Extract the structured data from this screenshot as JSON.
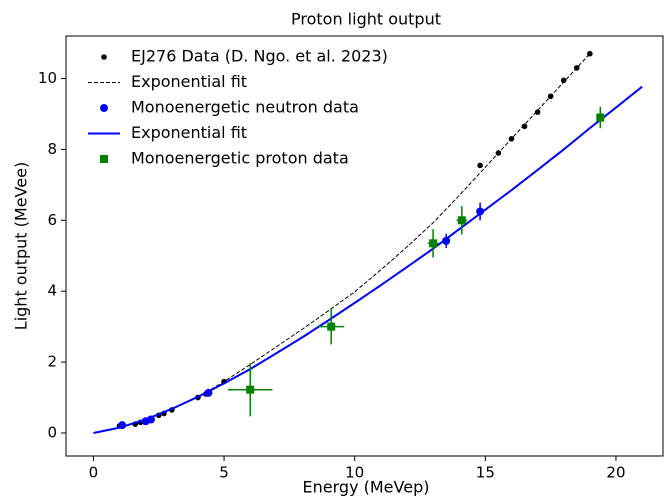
{
  "chart_data": {
    "type": "scatter",
    "title": "Proton light output",
    "xlabel": "Energy (MeVep)",
    "ylabel": "Light output (MeVee)",
    "xlim": [
      -1.05,
      21.8
    ],
    "ylim": [
      -0.65,
      11.2
    ],
    "xticks": [
      0,
      5,
      10,
      15,
      20
    ],
    "yticks": [
      0,
      2,
      4,
      6,
      8,
      10
    ],
    "grid": false,
    "legend": "upper left",
    "series": [
      {
        "name": "EJ276 Data (D. Ngo. et al. 2023)",
        "kind": "points",
        "marker": "circle",
        "color": "#000000",
        "x": [
          1.0,
          1.6,
          1.8,
          2.0,
          2.2,
          2.5,
          2.7,
          3.0,
          4.0,
          4.3,
          5.0,
          14.8,
          15.5,
          16.0,
          16.5,
          17.0,
          17.5,
          18.0,
          18.5,
          19.0
        ],
        "values": [
          0.2,
          0.25,
          0.3,
          0.35,
          0.4,
          0.5,
          0.55,
          0.65,
          1.0,
          1.1,
          1.45,
          7.55,
          7.9,
          8.3,
          8.65,
          9.05,
          9.5,
          9.95,
          10.3,
          10.7
        ]
      },
      {
        "name": "Exponential fit",
        "kind": "line",
        "dash": true,
        "color": "#000000",
        "x": [
          0,
          1,
          2,
          3,
          4,
          5,
          6,
          7,
          8,
          9,
          10,
          11,
          12,
          13,
          14,
          15,
          16,
          17,
          18,
          19
        ],
        "values": [
          0,
          0.15,
          0.38,
          0.67,
          1.01,
          1.45,
          1.93,
          2.43,
          2.93,
          3.45,
          3.98,
          4.6,
          5.25,
          5.93,
          6.7,
          7.5,
          8.3,
          9.1,
          9.9,
          10.7
        ]
      },
      {
        "name": "Monoenergetic neutron data",
        "kind": "points",
        "marker": "circle",
        "color": "#0000ff",
        "x": [
          1.1,
          2.0,
          2.2,
          4.4,
          13.5,
          14.8
        ],
        "values": [
          0.22,
          0.33,
          0.38,
          1.13,
          5.42,
          6.25
        ],
        "yerr": [
          0.05,
          0.05,
          0.05,
          0.08,
          0.2,
          0.25
        ]
      },
      {
        "name": "Exponential fit",
        "kind": "line",
        "dash": false,
        "color": "#0000ff",
        "x": [
          0,
          1,
          2,
          3,
          4,
          5,
          6,
          7,
          8,
          9,
          10,
          11,
          12,
          13,
          14,
          15,
          16,
          17,
          18,
          19,
          20,
          21
        ],
        "values": [
          0,
          0.15,
          0.38,
          0.68,
          1.02,
          1.4,
          1.8,
          2.25,
          2.7,
          3.18,
          3.67,
          4.17,
          4.68,
          5.2,
          5.75,
          6.3,
          6.85,
          7.42,
          8.0,
          8.6,
          9.18,
          9.77
        ]
      },
      {
        "name": "Monoenergetic proton data",
        "kind": "points",
        "marker": "square",
        "color": "#008000",
        "x": [
          6.0,
          9.1,
          13.0,
          14.1,
          19.4
        ],
        "values": [
          1.22,
          3.0,
          5.35,
          6.0,
          8.9
        ],
        "xerr": [
          0.85,
          0.5,
          0.2,
          0.2,
          0.15
        ],
        "yerr": [
          0.75,
          0.5,
          0.4,
          0.4,
          0.3
        ]
      }
    ]
  }
}
